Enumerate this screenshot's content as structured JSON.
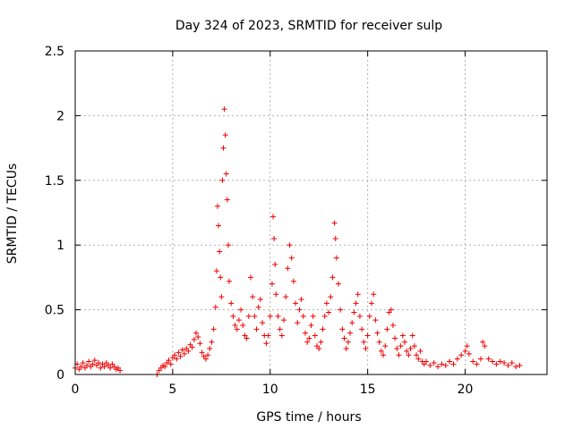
{
  "chart_data": {
    "type": "scatter",
    "title": "Day 324 of 2023, SRMTID for receiver sulp",
    "xlabel": "GPS time / hours",
    "ylabel": "SRMTID / TECUs",
    "xlim": [
      0,
      24.2
    ],
    "ylim": [
      0,
      2.5
    ],
    "x_ticks": [
      0,
      5,
      10,
      15,
      20
    ],
    "x_tick_labels": [
      "0",
      "5",
      "10",
      "15",
      "20"
    ],
    "y_ticks": [
      0,
      0.5,
      1,
      1.5,
      2,
      2.5
    ],
    "y_tick_labels": [
      "0",
      "0.5",
      "1",
      "1.5",
      "2",
      "2.5"
    ],
    "grid": true,
    "marker": "+",
    "color": "#ee0000",
    "series": [
      {
        "name": "sulp",
        "points": [
          [
            0.0,
            0.05
          ],
          [
            0.1,
            0.08
          ],
          [
            0.2,
            0.04
          ],
          [
            0.3,
            0.06
          ],
          [
            0.4,
            0.09
          ],
          [
            0.5,
            0.05
          ],
          [
            0.6,
            0.07
          ],
          [
            0.7,
            0.1
          ],
          [
            0.8,
            0.06
          ],
          [
            0.9,
            0.08
          ],
          [
            1.0,
            0.11
          ],
          [
            1.1,
            0.07
          ],
          [
            1.2,
            0.09
          ],
          [
            1.3,
            0.05
          ],
          [
            1.4,
            0.08
          ],
          [
            1.5,
            0.06
          ],
          [
            1.6,
            0.09
          ],
          [
            1.7,
            0.07
          ],
          [
            1.8,
            0.05
          ],
          [
            1.9,
            0.08
          ],
          [
            2.0,
            0.06
          ],
          [
            2.1,
            0.04
          ],
          [
            2.2,
            0.05
          ],
          [
            2.3,
            0.03
          ],
          [
            4.2,
            0.0
          ],
          [
            4.3,
            0.03
          ],
          [
            4.4,
            0.05
          ],
          [
            4.5,
            0.07
          ],
          [
            4.6,
            0.06
          ],
          [
            4.7,
            0.09
          ],
          [
            4.8,
            0.11
          ],
          [
            4.9,
            0.08
          ],
          [
            5.0,
            0.13
          ],
          [
            5.1,
            0.15
          ],
          [
            5.2,
            0.12
          ],
          [
            5.3,
            0.17
          ],
          [
            5.4,
            0.14
          ],
          [
            5.5,
            0.19
          ],
          [
            5.6,
            0.16
          ],
          [
            5.7,
            0.2
          ],
          [
            5.8,
            0.18
          ],
          [
            5.9,
            0.23
          ],
          [
            6.0,
            0.21
          ],
          [
            6.1,
            0.27
          ],
          [
            6.2,
            0.32
          ],
          [
            6.3,
            0.29
          ],
          [
            6.4,
            0.24
          ],
          [
            6.5,
            0.17
          ],
          [
            6.6,
            0.14
          ],
          [
            6.7,
            0.12
          ],
          [
            6.8,
            0.15
          ],
          [
            6.9,
            0.2
          ],
          [
            7.0,
            0.25
          ],
          [
            7.1,
            0.35
          ],
          [
            7.2,
            0.52
          ],
          [
            7.25,
            0.8
          ],
          [
            7.3,
            1.3
          ],
          [
            7.35,
            1.15
          ],
          [
            7.4,
            0.95
          ],
          [
            7.45,
            0.75
          ],
          [
            7.5,
            0.6
          ],
          [
            7.55,
            1.5
          ],
          [
            7.6,
            1.75
          ],
          [
            7.65,
            2.05
          ],
          [
            7.7,
            1.85
          ],
          [
            7.75,
            1.55
          ],
          [
            7.8,
            1.35
          ],
          [
            7.85,
            1.0
          ],
          [
            7.9,
            0.72
          ],
          [
            8.0,
            0.55
          ],
          [
            8.1,
            0.45
          ],
          [
            8.2,
            0.38
          ],
          [
            8.3,
            0.35
          ],
          [
            8.4,
            0.42
          ],
          [
            8.5,
            0.5
          ],
          [
            8.6,
            0.38
          ],
          [
            8.7,
            0.3
          ],
          [
            8.8,
            0.28
          ],
          [
            8.9,
            0.45
          ],
          [
            9.0,
            0.75
          ],
          [
            9.1,
            0.6
          ],
          [
            9.2,
            0.45
          ],
          [
            9.3,
            0.35
          ],
          [
            9.4,
            0.52
          ],
          [
            9.5,
            0.58
          ],
          [
            9.6,
            0.4
          ],
          [
            9.7,
            0.3
          ],
          [
            9.8,
            0.24
          ],
          [
            9.9,
            0.3
          ],
          [
            10.0,
            0.45
          ],
          [
            10.1,
            0.7
          ],
          [
            10.15,
            1.22
          ],
          [
            10.2,
            1.05
          ],
          [
            10.25,
            0.85
          ],
          [
            10.3,
            0.62
          ],
          [
            10.4,
            0.45
          ],
          [
            10.5,
            0.35
          ],
          [
            10.6,
            0.3
          ],
          [
            10.7,
            0.42
          ],
          [
            10.8,
            0.6
          ],
          [
            10.9,
            0.82
          ],
          [
            11.0,
            1.0
          ],
          [
            11.1,
            0.9
          ],
          [
            11.2,
            0.72
          ],
          [
            11.3,
            0.55
          ],
          [
            11.4,
            0.4
          ],
          [
            11.5,
            0.5
          ],
          [
            11.6,
            0.58
          ],
          [
            11.7,
            0.45
          ],
          [
            11.8,
            0.32
          ],
          [
            11.9,
            0.25
          ],
          [
            12.0,
            0.28
          ],
          [
            12.1,
            0.38
          ],
          [
            12.2,
            0.45
          ],
          [
            12.3,
            0.3
          ],
          [
            12.4,
            0.22
          ],
          [
            12.5,
            0.2
          ],
          [
            12.6,
            0.25
          ],
          [
            12.7,
            0.35
          ],
          [
            12.8,
            0.45
          ],
          [
            12.9,
            0.55
          ],
          [
            13.0,
            0.48
          ],
          [
            13.1,
            0.6
          ],
          [
            13.2,
            0.75
          ],
          [
            13.3,
            1.17
          ],
          [
            13.35,
            1.05
          ],
          [
            13.4,
            0.9
          ],
          [
            13.5,
            0.7
          ],
          [
            13.6,
            0.5
          ],
          [
            13.7,
            0.35
          ],
          [
            13.8,
            0.28
          ],
          [
            13.9,
            0.2
          ],
          [
            14.0,
            0.25
          ],
          [
            14.1,
            0.32
          ],
          [
            14.2,
            0.4
          ],
          [
            14.3,
            0.48
          ],
          [
            14.4,
            0.55
          ],
          [
            14.5,
            0.62
          ],
          [
            14.6,
            0.45
          ],
          [
            14.7,
            0.35
          ],
          [
            14.8,
            0.25
          ],
          [
            14.9,
            0.2
          ],
          [
            15.0,
            0.3
          ],
          [
            15.1,
            0.45
          ],
          [
            15.2,
            0.55
          ],
          [
            15.3,
            0.62
          ],
          [
            15.4,
            0.42
          ],
          [
            15.5,
            0.32
          ],
          [
            15.6,
            0.25
          ],
          [
            15.7,
            0.18
          ],
          [
            15.8,
            0.15
          ],
          [
            15.9,
            0.22
          ],
          [
            16.0,
            0.35
          ],
          [
            16.1,
            0.48
          ],
          [
            16.2,
            0.5
          ],
          [
            16.3,
            0.38
          ],
          [
            16.4,
            0.28
          ],
          [
            16.5,
            0.2
          ],
          [
            16.6,
            0.15
          ],
          [
            16.7,
            0.22
          ],
          [
            16.8,
            0.3
          ],
          [
            16.9,
            0.25
          ],
          [
            17.0,
            0.18
          ],
          [
            17.1,
            0.15
          ],
          [
            17.2,
            0.2
          ],
          [
            17.3,
            0.3
          ],
          [
            17.4,
            0.22
          ],
          [
            17.5,
            0.15
          ],
          [
            17.6,
            0.12
          ],
          [
            17.7,
            0.18
          ],
          [
            17.8,
            0.1
          ],
          [
            17.9,
            0.08
          ],
          [
            18.0,
            0.1
          ],
          [
            18.2,
            0.07
          ],
          [
            18.4,
            0.09
          ],
          [
            18.6,
            0.06
          ],
          [
            18.8,
            0.08
          ],
          [
            19.0,
            0.07
          ],
          [
            19.2,
            0.1
          ],
          [
            19.4,
            0.08
          ],
          [
            19.6,
            0.12
          ],
          [
            19.8,
            0.15
          ],
          [
            20.0,
            0.18
          ],
          [
            20.1,
            0.22
          ],
          [
            20.2,
            0.16
          ],
          [
            20.4,
            0.1
          ],
          [
            20.6,
            0.08
          ],
          [
            20.8,
            0.12
          ],
          [
            20.9,
            0.25
          ],
          [
            21.0,
            0.22
          ],
          [
            21.2,
            0.12
          ],
          [
            21.4,
            0.1
          ],
          [
            21.6,
            0.08
          ],
          [
            21.8,
            0.1
          ],
          [
            22.0,
            0.09
          ],
          [
            22.2,
            0.07
          ],
          [
            22.4,
            0.09
          ],
          [
            22.6,
            0.06
          ],
          [
            22.8,
            0.07
          ]
        ]
      }
    ]
  }
}
